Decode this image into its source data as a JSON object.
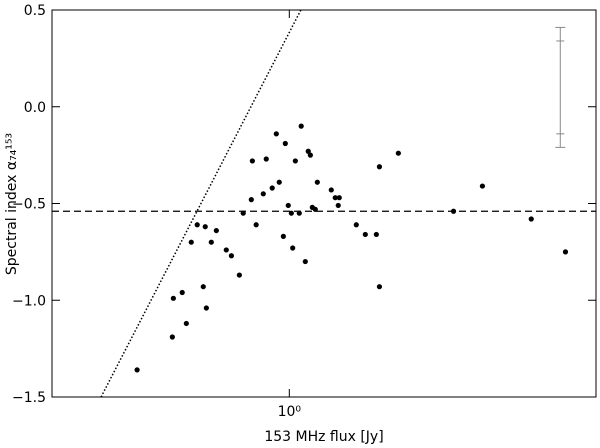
{
  "chart_data": {
    "type": "scatter",
    "xlabel": "153 MHz flux [Jy]",
    "ylabel": "Spectral index α₇₄¹⁵³",
    "xscale": "log",
    "xlim": [
      0.25,
      6
    ],
    "ylim": [
      -1.5,
      0.5
    ],
    "xticks": [
      {
        "value": 1,
        "label": "10⁰"
      }
    ],
    "yticks": [
      {
        "value": 0.5,
        "label": "0.5"
      },
      {
        "value": 0.0,
        "label": "0.0"
      },
      {
        "value": -0.5,
        "label": "−0.5"
      },
      {
        "value": -1.0,
        "label": "−1.0"
      },
      {
        "value": -1.5,
        "label": "−1.5"
      }
    ],
    "color": "#000000",
    "x": [
      0.411,
      0.505,
      0.508,
      0.535,
      0.548,
      0.564,
      0.584,
      0.605,
      0.612,
      0.616,
      0.634,
      0.653,
      0.692,
      0.713,
      0.747,
      0.764,
      0.801,
      0.806,
      0.824,
      0.859,
      0.874,
      0.905,
      0.927,
      0.943,
      0.966,
      0.977,
      0.994,
      1.012,
      1.02,
      1.036,
      1.06,
      1.072,
      1.098,
      1.117,
      1.131,
      1.144,
      1.164,
      1.178,
      1.278,
      1.308,
      1.331,
      1.339,
      1.479,
      1.559,
      1.663,
      1.693,
      1.693,
      1.891,
      2.61,
      3.09,
      4.11,
      5.02
    ],
    "values": [
      -1.36,
      -1.19,
      -0.99,
      -0.96,
      -1.12,
      -0.7,
      -0.61,
      -0.93,
      -0.62,
      -1.04,
      -0.7,
      -0.64,
      -0.74,
      -0.77,
      -0.87,
      -0.55,
      -0.48,
      -0.28,
      -0.61,
      -0.45,
      -0.27,
      -0.42,
      -0.14,
      -0.39,
      -0.67,
      -0.19,
      -0.51,
      -0.55,
      -0.73,
      -0.28,
      -0.55,
      -0.1,
      -0.8,
      -0.23,
      -0.25,
      -0.52,
      -0.53,
      -0.39,
      -0.43,
      -0.47,
      -0.51,
      -0.47,
      -0.61,
      -0.66,
      -0.66,
      -0.31,
      -0.93,
      -0.24,
      -0.54,
      -0.41,
      -0.58,
      -0.75
    ],
    "limit_line": {
      "x": [
        0.333,
        1.07
      ],
      "values": [
        -1.5,
        0.5
      ],
      "color": "#000000"
    },
    "mean_line": {
      "value": -0.54,
      "color": "#000000"
    },
    "error_bar": {
      "x": 4.87,
      "value": 0.1,
      "error": 0.31,
      "inner_error": 0.24,
      "color": "#888888"
    }
  }
}
